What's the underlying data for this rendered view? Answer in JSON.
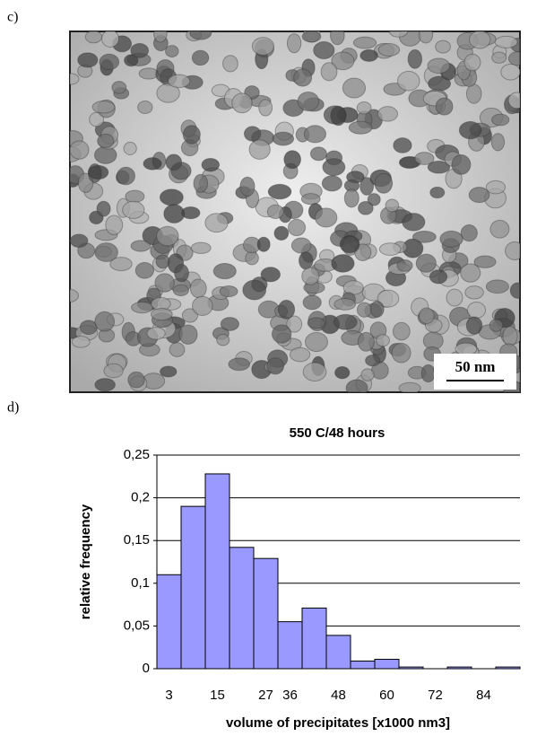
{
  "panel_c": {
    "label": "c)",
    "scale_bar": "50 nm"
  },
  "panel_d": {
    "label": "d)"
  },
  "chart_data": {
    "type": "bar",
    "title": "550 C/48 hours",
    "x_label": "volume of precipitates [x1000 nm3]",
    "y_label": "relative frequency",
    "categories": [
      "3",
      null,
      "15",
      null,
      "27",
      "36",
      null,
      "48",
      null,
      "60",
      null,
      "72",
      null,
      "84",
      null
    ],
    "values": [
      0.11,
      0.19,
      0.228,
      0.142,
      0.129,
      0.055,
      0.071,
      0.039,
      0.009,
      0.011,
      0.002,
      0,
      0.002,
      0,
      0.002
    ],
    "color": "#9999ff",
    "ylim": [
      0,
      0.25
    ],
    "yticks": [
      0,
      {
        "value": 0.05,
        "label": "0,05"
      },
      {
        "value": 0.1,
        "label": "0,1"
      },
      {
        "value": 0.15,
        "label": "0,15"
      },
      {
        "value": 0.2,
        "label": "0,2"
      },
      {
        "value": 0.25,
        "label": "0,25"
      }
    ],
    "grid": true
  }
}
